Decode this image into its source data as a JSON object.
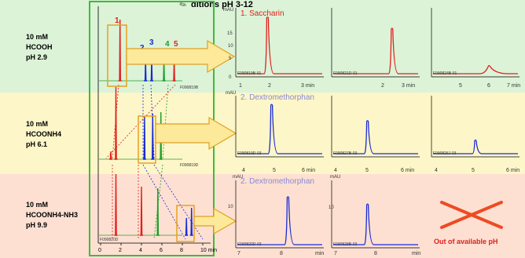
{
  "header": {
    "title_partial": "ditions pH 3-12"
  },
  "conditions": [
    {
      "lines": [
        "10 mM",
        "HCOOH",
        "pH 2.9"
      ],
      "band_color": "#dcf3d8"
    },
    {
      "lines": [
        "10 mM",
        "HCOONH4",
        "pH 6.1"
      ],
      "band_color": "#fdf6c8"
    },
    {
      "lines": [
        "10 mM",
        "HCOONH4-NH3",
        "pH 9.9"
      ],
      "band_color": "#fde0d2"
    }
  ],
  "overview": {
    "x_ticks": [
      "0",
      "2",
      "4",
      "6",
      "8",
      "10 min"
    ],
    "peak_labels": [
      {
        "text": "1",
        "color": "#e0201c"
      },
      {
        "text": "2",
        "color": "#1a2ad6"
      },
      {
        "text": "3",
        "color": "#1a2ad6"
      },
      {
        "text": "4",
        "color": "#1f9e2a"
      },
      {
        "text": "5",
        "color": "#e0201c"
      }
    ],
    "file_ids": [
      "F090819B",
      "F090819D",
      "F090820D"
    ]
  },
  "zoom_titles": [
    "1. Saccharin",
    "2. Dextromethorphan",
    "2. Dextromethorphan"
  ],
  "zoom_panels": [
    {
      "ids": [
        "F090819B-01",
        "F090821D-01",
        "F090824B-01"
      ]
    },
    {
      "ids": [
        "F090819D-03",
        "F090827B-03",
        "F090826J-03"
      ]
    },
    {
      "ids": [
        "F090820D-03",
        "F090828B-03"
      ]
    }
  ],
  "axis_texts": {
    "mau": "mAU",
    "row1_y": [
      "15",
      "10",
      "5",
      "0"
    ],
    "row1_x": [
      "1",
      "2",
      "3 min",
      "2",
      "3 min",
      "5",
      "6",
      "7 min"
    ],
    "row2_x": [
      "4",
      "5",
      "6 min",
      "4",
      "5",
      "6 min",
      "4",
      "5",
      "6 min"
    ],
    "row3_x": [
      "7",
      "8",
      "min",
      "7",
      "8",
      "min"
    ],
    "row3_y": [
      "10"
    ]
  },
  "out_of_range_text": "Out of available pH",
  "colors": {
    "red": "#e0201c",
    "blue": "#1a2ad6",
    "green": "#1f9e2a",
    "arrow_fill": "#fde99a",
    "arrow_stroke": "#e0a020",
    "highlight": "#e8a020",
    "title_color": "#8a8ad0"
  },
  "chart_data": {
    "type": "line",
    "x_unit": "min",
    "overview_xlim": [
      0,
      11
    ],
    "overview_retention_min": {
      "HCOOH_pH2.9": {
        "1": 1.9,
        "2": 4.4,
        "3": 5.0,
        "4": 6.2,
        "5": 7.2
      },
      "HCOONH4_pH6.1": {
        "1": 1.5,
        "2": 4.3,
        "3": 5.1,
        "4": 5.9,
        "5": 1.0
      },
      "HCOONH4-NH3_pH9.9": {
        "1": 1.5,
        "2": 8.4,
        "3": 8.9,
        "4": 5.6,
        "5": 4.0
      }
    },
    "zoom_series": [
      {
        "name": "1. Saccharin",
        "row": 1,
        "panel": 1,
        "xlim": [
          1,
          3
        ],
        "peak_x": 1.7,
        "peak_y": 15
      },
      {
        "row": 1,
        "panel": 2,
        "xlim": [
          1,
          3
        ],
        "peak_x": 2.4,
        "peak_y": 12
      },
      {
        "row": 1,
        "panel": 3,
        "xlim": [
          4,
          7
        ],
        "peak_x": 6.0,
        "peak_y": 2
      },
      {
        "name": "2. Dextromethorphan",
        "row": 2,
        "panel": 1,
        "xlim": [
          4,
          6
        ],
        "peak_x": 4.8,
        "peak_y": 15
      },
      {
        "row": 2,
        "panel": 2,
        "xlim": [
          4,
          6
        ],
        "peak_x": 4.8,
        "peak_y": 10
      },
      {
        "row": 2,
        "panel": 3,
        "xlim": [
          4,
          6
        ],
        "peak_x": 5.0,
        "peak_y": 4
      },
      {
        "name": "2. Dextromethorphan",
        "row": 3,
        "panel": 1,
        "xlim": [
          7,
          9
        ],
        "peak_x": 8.2,
        "peak_y": 13
      },
      {
        "row": 3,
        "panel": 2,
        "xlim": [
          7,
          9
        ],
        "peak_x": 7.8,
        "peak_y": 11
      }
    ]
  }
}
